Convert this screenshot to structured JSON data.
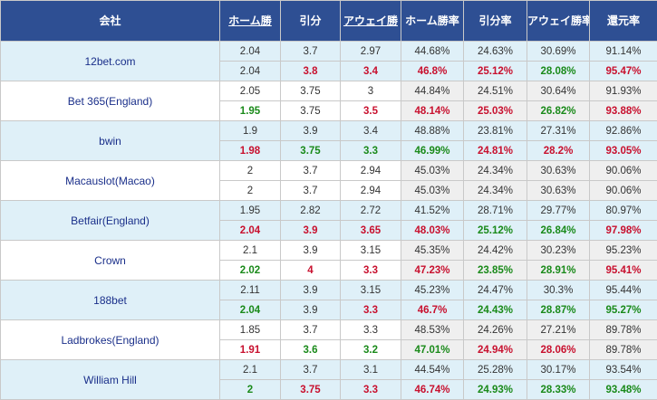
{
  "headers": {
    "company": "会社",
    "home": "ホーム勝",
    "draw": "引分",
    "away": "アウェイ勝",
    "home_rate": "ホーム勝率",
    "draw_rate": "引分率",
    "away_rate": "アウェイ勝率",
    "payout": "還元率"
  },
  "colors": {
    "header_bg": "#2e4f93",
    "up": "#c8102e",
    "down": "#1a8a1a",
    "row_blue": "#dff0f8",
    "pct_grey": "#efefef"
  },
  "rows": [
    {
      "company": "12bet.com",
      "stripe": "blue",
      "initial": [
        "2.04",
        "3.7",
        "2.97",
        "44.68%",
        "24.63%",
        "30.69%",
        "91.14%"
      ],
      "live": [
        "2.04",
        "3.8",
        "3.4",
        "46.8%",
        "25.12%",
        "28.08%",
        "95.47%"
      ],
      "live_colors": [
        "",
        "r",
        "r",
        "r",
        "r",
        "g",
        "r"
      ]
    },
    {
      "company": "Bet 365(England)",
      "stripe": "white",
      "initial": [
        "2.05",
        "3.75",
        "3",
        "44.84%",
        "24.51%",
        "30.64%",
        "91.93%"
      ],
      "live": [
        "1.95",
        "3.75",
        "3.5",
        "48.14%",
        "25.03%",
        "26.82%",
        "93.88%"
      ],
      "live_colors": [
        "g",
        "",
        "r",
        "r",
        "r",
        "g",
        "r"
      ]
    },
    {
      "company": "bwin",
      "stripe": "blue",
      "initial": [
        "1.9",
        "3.9",
        "3.4",
        "48.88%",
        "23.81%",
        "27.31%",
        "92.86%"
      ],
      "live": [
        "1.98",
        "3.75",
        "3.3",
        "46.99%",
        "24.81%",
        "28.2%",
        "93.05%"
      ],
      "live_colors": [
        "r",
        "g",
        "g",
        "g",
        "r",
        "r",
        "r"
      ]
    },
    {
      "company": "Macauslot(Macao)",
      "stripe": "white",
      "initial": [
        "2",
        "3.7",
        "2.94",
        "45.03%",
        "24.34%",
        "30.63%",
        "90.06%"
      ],
      "live": [
        "2",
        "3.7",
        "2.94",
        "45.03%",
        "24.34%",
        "30.63%",
        "90.06%"
      ],
      "live_colors": [
        "",
        "",
        "",
        "",
        "",
        "",
        ""
      ]
    },
    {
      "company": "Betfair(England)",
      "stripe": "blue",
      "initial": [
        "1.95",
        "2.82",
        "2.72",
        "41.52%",
        "28.71%",
        "29.77%",
        "80.97%"
      ],
      "live": [
        "2.04",
        "3.9",
        "3.65",
        "48.03%",
        "25.12%",
        "26.84%",
        "97.98%"
      ],
      "live_colors": [
        "r",
        "r",
        "r",
        "r",
        "g",
        "g",
        "r"
      ]
    },
    {
      "company": "Crown",
      "stripe": "white",
      "initial": [
        "2.1",
        "3.9",
        "3.15",
        "45.35%",
        "24.42%",
        "30.23%",
        "95.23%"
      ],
      "live": [
        "2.02",
        "4",
        "3.3",
        "47.23%",
        "23.85%",
        "28.91%",
        "95.41%"
      ],
      "live_colors": [
        "g",
        "r",
        "r",
        "r",
        "g",
        "g",
        "r"
      ]
    },
    {
      "company": "188bet",
      "stripe": "blue",
      "initial": [
        "2.11",
        "3.9",
        "3.15",
        "45.23%",
        "24.47%",
        "30.3%",
        "95.44%"
      ],
      "live": [
        "2.04",
        "3.9",
        "3.3",
        "46.7%",
        "24.43%",
        "28.87%",
        "95.27%"
      ],
      "live_colors": [
        "g",
        "",
        "r",
        "r",
        "g",
        "g",
        "g"
      ]
    },
    {
      "company": "Ladbrokes(England)",
      "stripe": "white",
      "initial": [
        "1.85",
        "3.7",
        "3.3",
        "48.53%",
        "24.26%",
        "27.21%",
        "89.78%"
      ],
      "live": [
        "1.91",
        "3.6",
        "3.2",
        "47.01%",
        "24.94%",
        "28.06%",
        "89.78%"
      ],
      "live_colors": [
        "r",
        "g",
        "g",
        "g",
        "r",
        "r",
        ""
      ]
    },
    {
      "company": "William Hill",
      "stripe": "blue",
      "initial": [
        "2.1",
        "3.7",
        "3.1",
        "44.54%",
        "25.28%",
        "30.17%",
        "93.54%"
      ],
      "live": [
        "2",
        "3.75",
        "3.3",
        "46.74%",
        "24.93%",
        "28.33%",
        "93.48%"
      ],
      "live_colors": [
        "g",
        "r",
        "r",
        "r",
        "g",
        "g",
        "g"
      ]
    }
  ]
}
